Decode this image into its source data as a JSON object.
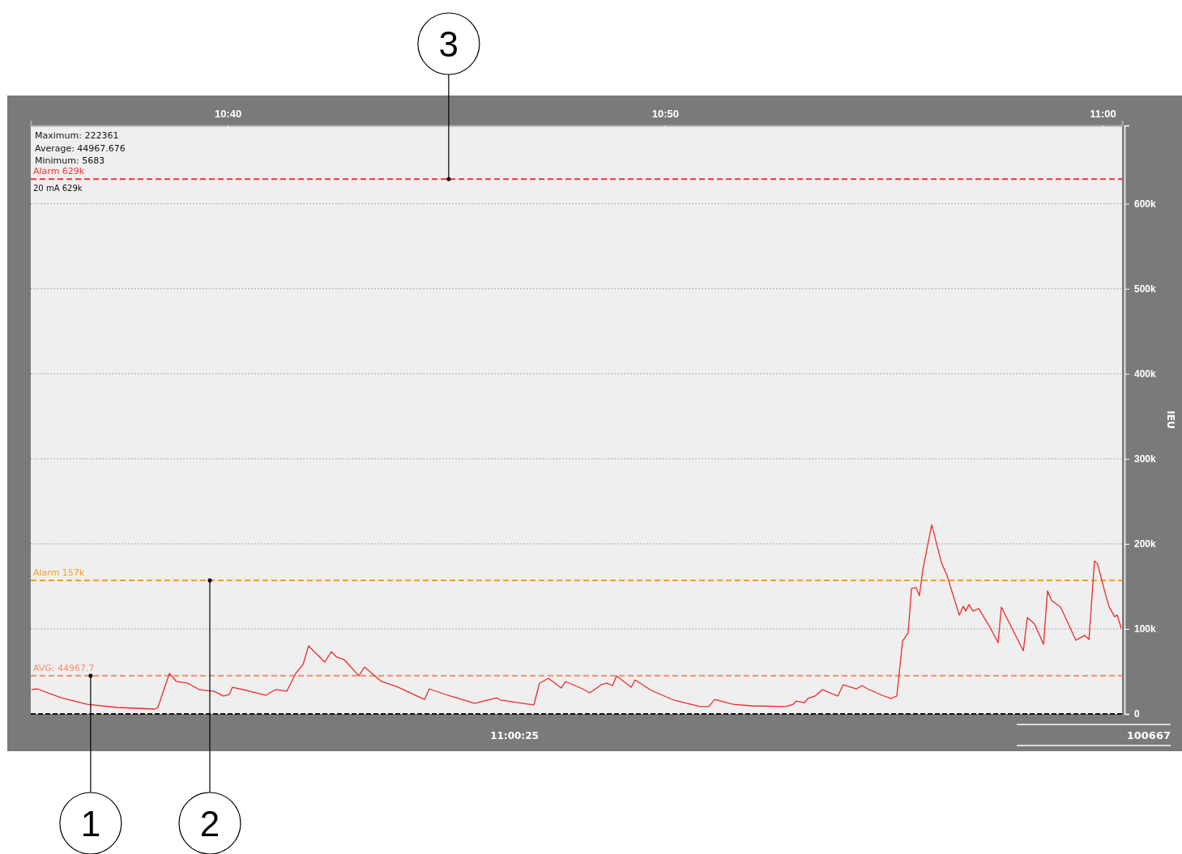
{
  "chart_data": {
    "type": "line",
    "ylabel": "IEU",
    "xlim": [
      10.5917,
      11.0074
    ],
    "xticks": [
      {
        "value": 10.6667,
        "label": "10:40"
      },
      {
        "value": 10.8333,
        "label": "10:50"
      },
      {
        "value": 11,
        "label": "11:00"
      }
    ],
    "ylim": [
      0,
      692000
    ],
    "yticks": [
      0,
      {
        "value": 100000,
        "label": "100k"
      },
      {
        "value": 200000,
        "label": "200k"
      },
      {
        "value": 300000,
        "label": "300k"
      },
      {
        "value": 400000,
        "label": "400k"
      },
      {
        "value": 500000,
        "label": "500k"
      },
      {
        "value": 600000,
        "label": "600k"
      }
    ],
    "grid": "y",
    "marker": "none",
    "line_style": "solid",
    "series": [
      {
        "color": "#ee2b2b",
        "x": [
          10.592,
          10.5941,
          10.6034,
          10.6133,
          10.6247,
          10.6389,
          10.6401,
          10.6445,
          10.6472,
          10.6515,
          10.6559,
          10.6614,
          10.6651,
          10.6673,
          10.6685,
          10.6741,
          10.6812,
          10.6849,
          10.6892,
          10.6926,
          10.6954,
          10.6975,
          10.6997,
          10.7037,
          10.7062,
          10.7083,
          10.7111,
          10.7167,
          10.7188,
          10.7253,
          10.7309,
          10.7417,
          10.7435,
          10.7506,
          10.7608,
          10.7691,
          10.7707,
          10.7833,
          10.7855,
          10.7889,
          10.7938,
          10.7954,
          10.8019,
          10.8046,
          10.809,
          10.8111,
          10.8133,
          10.8148,
          10.8204,
          10.8219,
          10.8281,
          10.8367,
          10.8466,
          10.85,
          10.8522,
          10.8593,
          10.8664,
          10.8793,
          10.8821,
          10.8833,
          10.8864,
          10.8877,
          10.8904,
          10.8932,
          10.8991,
          10.9012,
          10.9062,
          10.9083,
          10.9105,
          10.916,
          10.9194,
          10.9216,
          10.9238,
          10.9259,
          10.9272,
          10.929,
          10.9302,
          10.9315,
          10.9349,
          10.9386,
          10.9407,
          10.9454,
          10.9469,
          10.9478,
          10.9491,
          10.9506,
          10.9528,
          10.9571,
          10.9602,
          10.9614,
          10.9698,
          10.9713,
          10.9741,
          10.9775,
          10.979,
          10.9806,
          10.984,
          10.9898,
          10.9932,
          10.9948,
          10.9969,
          10.9981,
          11.0009,
          11.0025,
          11.0046,
          11.0056,
          11.0071
        ],
        "values": [
          28600,
          29500,
          19000,
          11400,
          7600,
          5700,
          7600,
          47600,
          38100,
          36200,
          28600,
          26700,
          21000,
          22900,
          31400,
          27600,
          21900,
          28600,
          26700,
          47600,
          58100,
          80000,
          73300,
          61000,
          73300,
          66700,
          63800,
          44800,
          55200,
          38100,
          32400,
          17100,
          29500,
          21900,
          12400,
          19000,
          16200,
          10500,
          36200,
          41900,
          30500,
          38100,
          29500,
          24800,
          34300,
          36200,
          33300,
          44800,
          31400,
          40000,
          27600,
          16200,
          8600,
          8600,
          17100,
          11400,
          9500,
          8600,
          11400,
          15200,
          13300,
          18100,
          21000,
          28600,
          21000,
          34300,
          29500,
          33300,
          29500,
          21900,
          18100,
          21000,
          85700,
          95200,
          147600,
          148600,
          139000,
          169500,
          222361,
          178100,
          162900,
          116200,
          126700,
          121000,
          128600,
          121000,
          123800,
          101900,
          83800,
          125700,
          74300,
          113300,
          105700,
          81900,
          144800,
          133300,
          125700,
          86700,
          92400,
          87600,
          180000,
          176200,
          142900,
          125700,
          114300,
          116200,
          100667
        ]
      }
    ],
    "ref_lines": [
      {
        "axis": "y",
        "value": 629000,
        "label": "Alarm 629k",
        "color": "#ee3333",
        "line_style": "dashed"
      },
      {
        "axis": "y",
        "value": 157000,
        "label": "Alarm 157k",
        "color": "#f0a020",
        "line_style": "dashed"
      },
      {
        "axis": "y",
        "value": 44967.7,
        "label": "AVG: 44967.7",
        "color": "#f4906a",
        "line_style": "dashed"
      }
    ],
    "annotations": [
      "Maximum: 222361",
      "Average: 44967.676",
      "Minimum: 5683",
      "20 mA 629k",
      "11:00:25",
      "100667",
      {
        "text": "1",
        "x": 10.6145,
        "y": 44967.7
      },
      {
        "text": "2",
        "x": 10.6599,
        "y": 157000
      },
      {
        "text": "3",
        "x": 10.7509,
        "y": 629000
      }
    ]
  }
}
